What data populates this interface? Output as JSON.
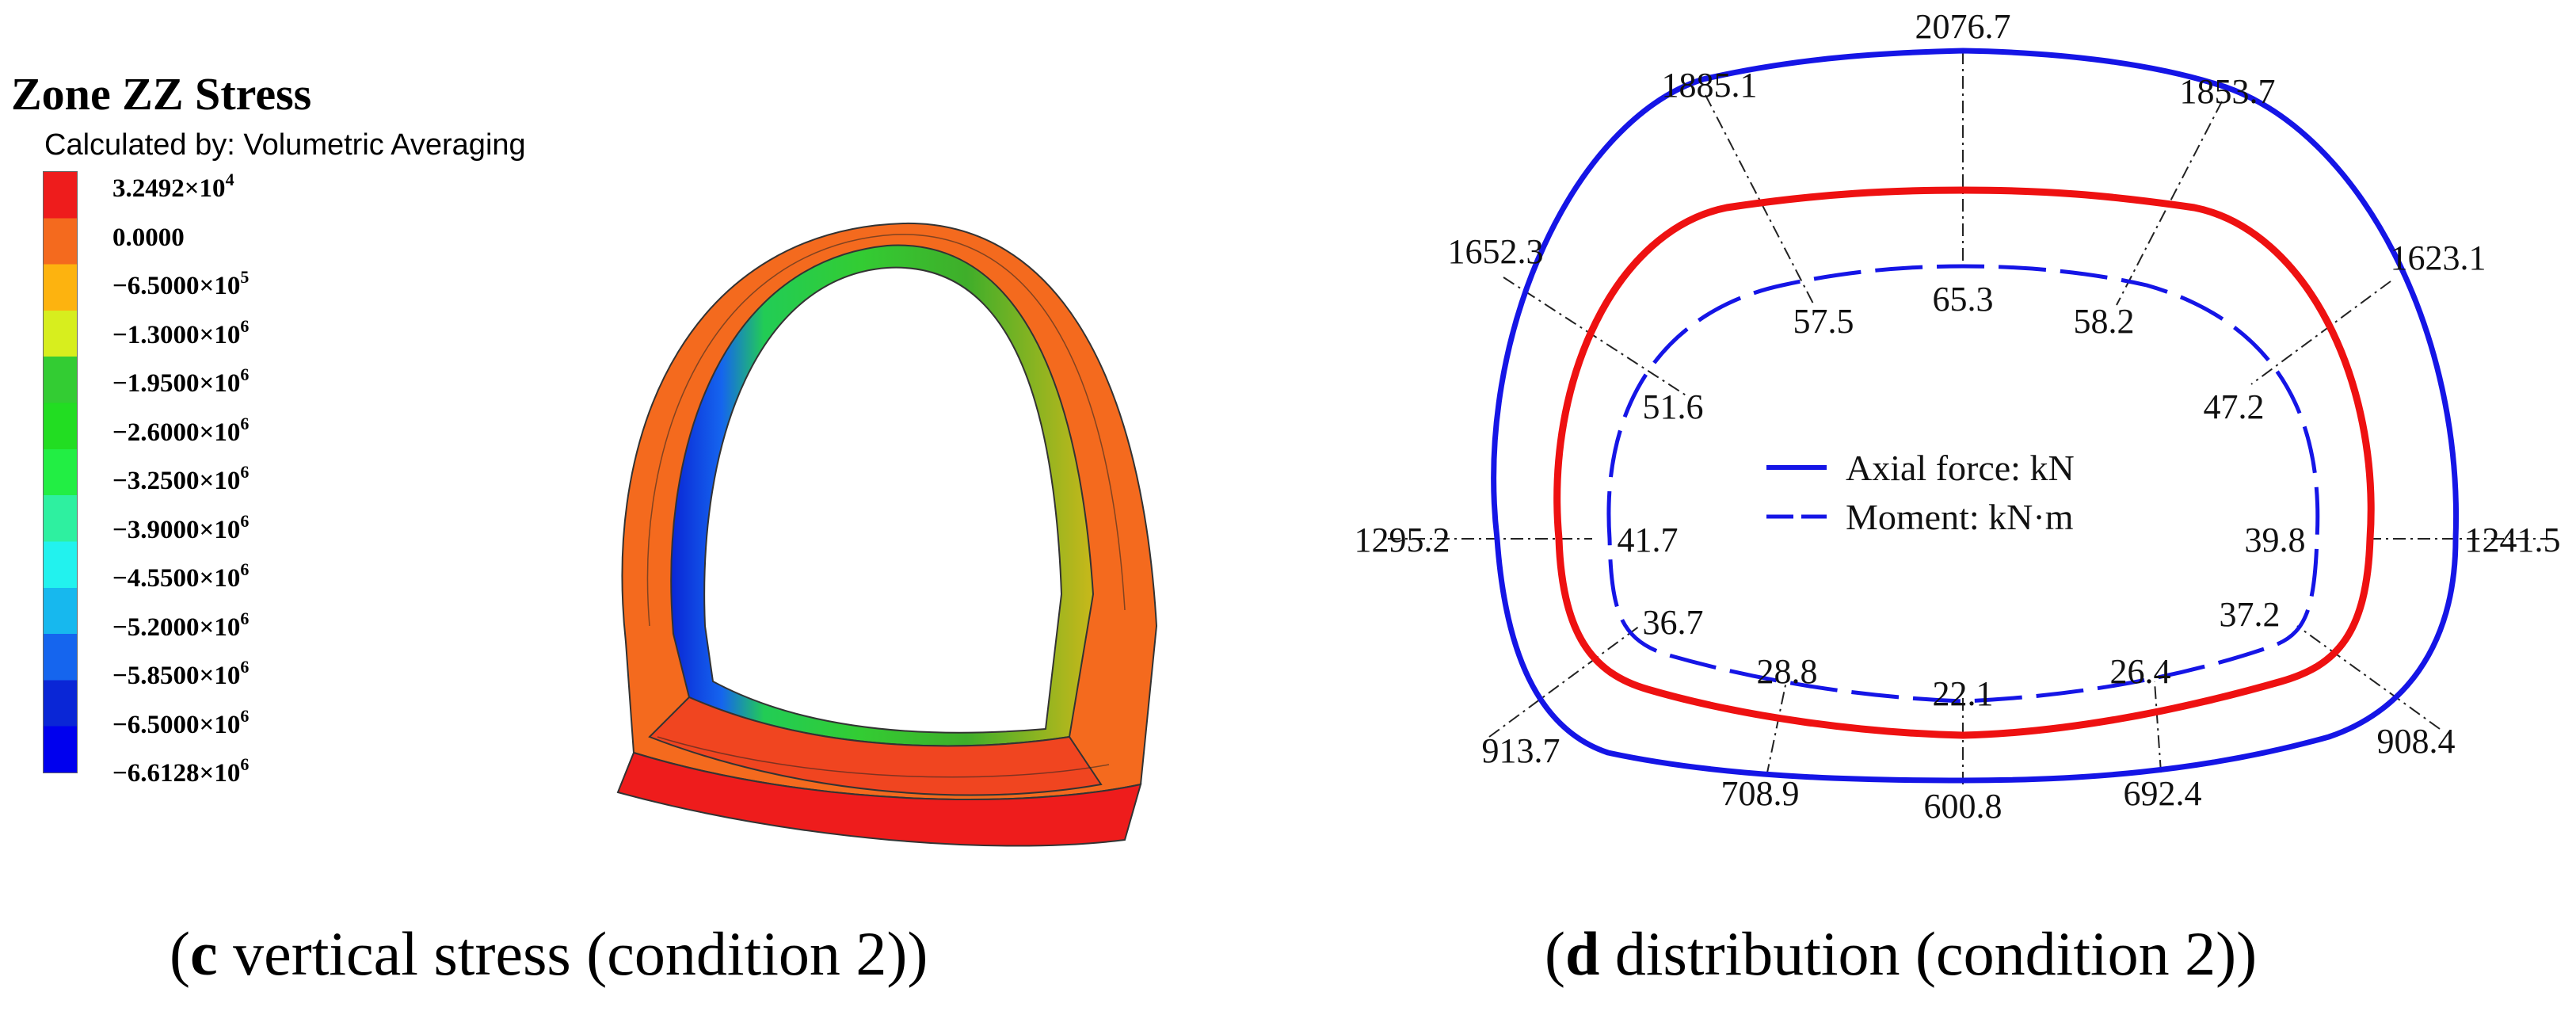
{
  "panel_c": {
    "legend": {
      "title": "Zone ZZ Stress",
      "subtitle": "Calculated by: Volumetric Averaging",
      "entries": [
        {
          "mantissa": "3.2492×10",
          "exp": "4",
          "color": "#ee1c1c"
        },
        {
          "mantissa": "0.0000",
          "exp": "",
          "color": "#f46a1e"
        },
        {
          "mantissa": "−6.5000×10",
          "exp": "5",
          "color": "#fdb30f"
        },
        {
          "mantissa": "−1.3000×10",
          "exp": "6",
          "color": "#d7ee1e"
        },
        {
          "mantissa": "−1.9500×10",
          "exp": "6",
          "color": "#33cc33"
        },
        {
          "mantissa": "−2.6000×10",
          "exp": "6",
          "color": "#22dd22"
        },
        {
          "mantissa": "−3.2500×10",
          "exp": "6",
          "color": "#22ee44"
        },
        {
          "mantissa": "−3.9000×10",
          "exp": "6",
          "color": "#2ef0a0"
        },
        {
          "mantissa": "−4.5500×10",
          "exp": "6",
          "color": "#22f2ee"
        },
        {
          "mantissa": "−5.2000×10",
          "exp": "6",
          "color": "#17b8ee"
        },
        {
          "mantissa": "−5.8500×10",
          "exp": "6",
          "color": "#1565ee"
        },
        {
          "mantissa": "−6.5000×10",
          "exp": "6",
          "color": "#0a26d6"
        },
        {
          "mantissa": "−6.6128×10",
          "exp": "6",
          "color": "#0000ee"
        }
      ]
    },
    "caption_letter": "c",
    "caption_text": " vertical stress (condition 2)"
  },
  "panel_d": {
    "axial_force": [
      {
        "label": "2076.7"
      },
      {
        "label": "1885.1"
      },
      {
        "label": "1853.7"
      },
      {
        "label": "1652.3"
      },
      {
        "label": "1623.1"
      },
      {
        "label": "1295.2"
      },
      {
        "label": "1241.5"
      },
      {
        "label": "913.7"
      },
      {
        "label": "908.4"
      },
      {
        "label": "708.9"
      },
      {
        "label": "692.4"
      },
      {
        "label": "600.8"
      }
    ],
    "moment": [
      {
        "label": "65.3"
      },
      {
        "label": "57.5"
      },
      {
        "label": "58.2"
      },
      {
        "label": "51.6"
      },
      {
        "label": "47.2"
      },
      {
        "label": "41.7"
      },
      {
        "label": "39.8"
      },
      {
        "label": "36.7"
      },
      {
        "label": "37.2"
      },
      {
        "label": "28.8"
      },
      {
        "label": "26.4"
      },
      {
        "label": "22.1"
      }
    ],
    "legend": {
      "axial_label": "Axial force:  kN",
      "moment_label": "Moment:  kN·m"
    },
    "colors": {
      "axial": "#1515e6",
      "lining": "#ee1111",
      "moment": "#1515e6"
    },
    "caption_letter": "d",
    "caption_text": " distribution (condition 2)"
  }
}
